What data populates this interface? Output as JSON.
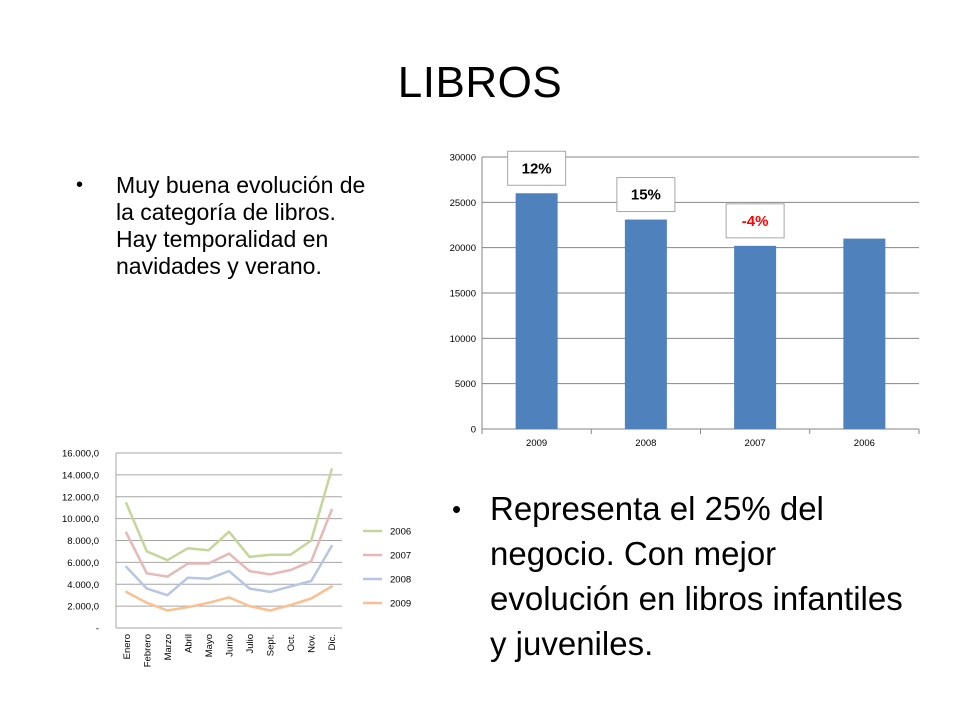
{
  "slide": {
    "title": "LIBROS",
    "bullet1": "Muy buena evolución de la categoría de libros. Hay temporalidad en navidades y verano.",
    "bullet2": "Representa el 25% del negocio. Con mejor evolución en libros infantiles y juveniles."
  },
  "chart_data": [
    {
      "type": "bar",
      "categories": [
        "2009",
        "2008",
        "2007",
        "2006"
      ],
      "values": [
        26000,
        23100,
        20200,
        21000
      ],
      "annotations": [
        "12%",
        "15%",
        "-4%",
        ""
      ],
      "annotation_colors": [
        "#000000",
        "#000000",
        "#ff0000",
        "#000000"
      ],
      "ylim": [
        0,
        30000
      ],
      "yticks": [
        0,
        5000,
        10000,
        15000,
        20000,
        25000,
        30000
      ],
      "ytick_labels": [
        "0",
        "5000",
        "10000",
        "15000",
        "20000",
        "25000",
        "30000"
      ],
      "bar_color": "#4f81bd",
      "grid": true
    },
    {
      "type": "line",
      "categories": [
        "Enero",
        "Febrero",
        "Marzo",
        "Abril",
        "Mayo",
        "Junio",
        "Julio",
        "Sept.",
        "Oct.",
        "Nov.",
        "Dic."
      ],
      "series": [
        {
          "name": "2006",
          "color": "#c4d79b",
          "values": [
            11400,
            7000,
            6200,
            7300,
            7100,
            8800,
            6500,
            6700,
            6700,
            8000,
            14500
          ]
        },
        {
          "name": "2007",
          "color": "#e6b9b8",
          "values": [
            8700,
            5000,
            4700,
            5900,
            5900,
            6800,
            5200,
            4900,
            5300,
            6100,
            10800
          ]
        },
        {
          "name": "2008",
          "color": "#b9c6e3",
          "values": [
            5600,
            3600,
            3000,
            4600,
            4500,
            5200,
            3600,
            3300,
            3800,
            4300,
            7500
          ]
        },
        {
          "name": "2009",
          "color": "#fac090",
          "values": [
            3300,
            2300,
            1600,
            1900,
            2300,
            2800,
            2000,
            1600,
            2100,
            2700,
            3800
          ]
        }
      ],
      "ylim": [
        0,
        16000
      ],
      "yticks": [
        0,
        2000,
        4000,
        6000,
        8000,
        10000,
        12000,
        14000,
        16000
      ],
      "ytick_labels": [
        "-",
        "2.000,0",
        "4.000,0",
        "6.000,0",
        "8.000,0",
        "10.000,0",
        "12.000,0",
        "14.000,0",
        "16.000,0"
      ],
      "legend_position": "right",
      "grid": true
    }
  ]
}
